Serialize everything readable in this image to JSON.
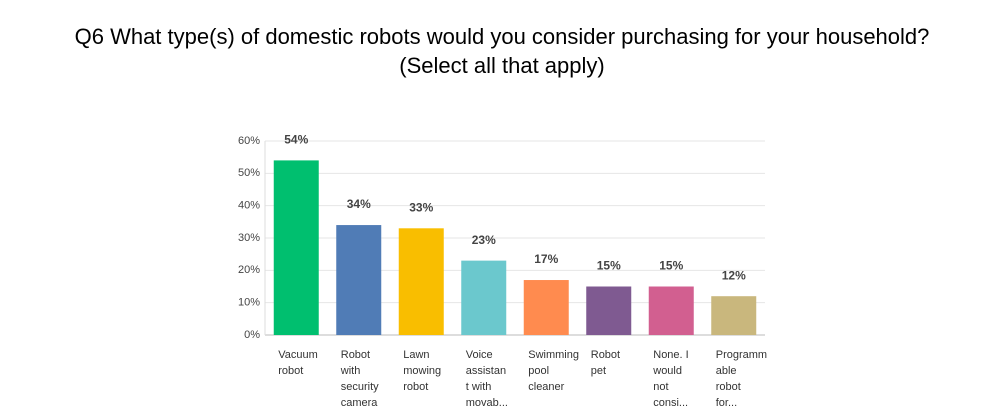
{
  "chart_data": {
    "type": "bar",
    "title": "Q6 What type(s) of domestic robots would you consider purchasing for your household?",
    "subtitle": "(Select all that apply)",
    "categories": [
      [
        "Vacuum",
        "robot"
      ],
      [
        "Robot",
        "with",
        "security",
        "camera"
      ],
      [
        "Lawn",
        "mowing",
        "robot"
      ],
      [
        "Voice",
        "assistan",
        "t with",
        "movab..."
      ],
      [
        "Swimming",
        "pool",
        "cleaner"
      ],
      [
        "Robot",
        "pet"
      ],
      [
        "None. I",
        "would",
        "not",
        "consi..."
      ],
      [
        "Programm",
        "able",
        "robot",
        "for..."
      ]
    ],
    "values": [
      54,
      34,
      33,
      23,
      17,
      15,
      15,
      12
    ],
    "value_labels": [
      "54%",
      "34%",
      "33%",
      "23%",
      "17%",
      "15%",
      "15%",
      "12%"
    ],
    "colors": [
      "#00bf6f",
      "#507cb6",
      "#f9be00",
      "#6bc8cd",
      "#ff8b4f",
      "#7f5a91",
      "#d25f90",
      "#c9b77d"
    ],
    "ylim": [
      0,
      60
    ],
    "yticks": [
      {
        "value": 0,
        "label": "0%"
      },
      {
        "value": 10,
        "label": "10%"
      },
      {
        "value": 20,
        "label": "20%"
      },
      {
        "value": 30,
        "label": "30%"
      },
      {
        "value": 40,
        "label": "40%"
      },
      {
        "value": 50,
        "label": "50%"
      },
      {
        "value": 60,
        "label": "60%"
      }
    ],
    "grid": true
  }
}
